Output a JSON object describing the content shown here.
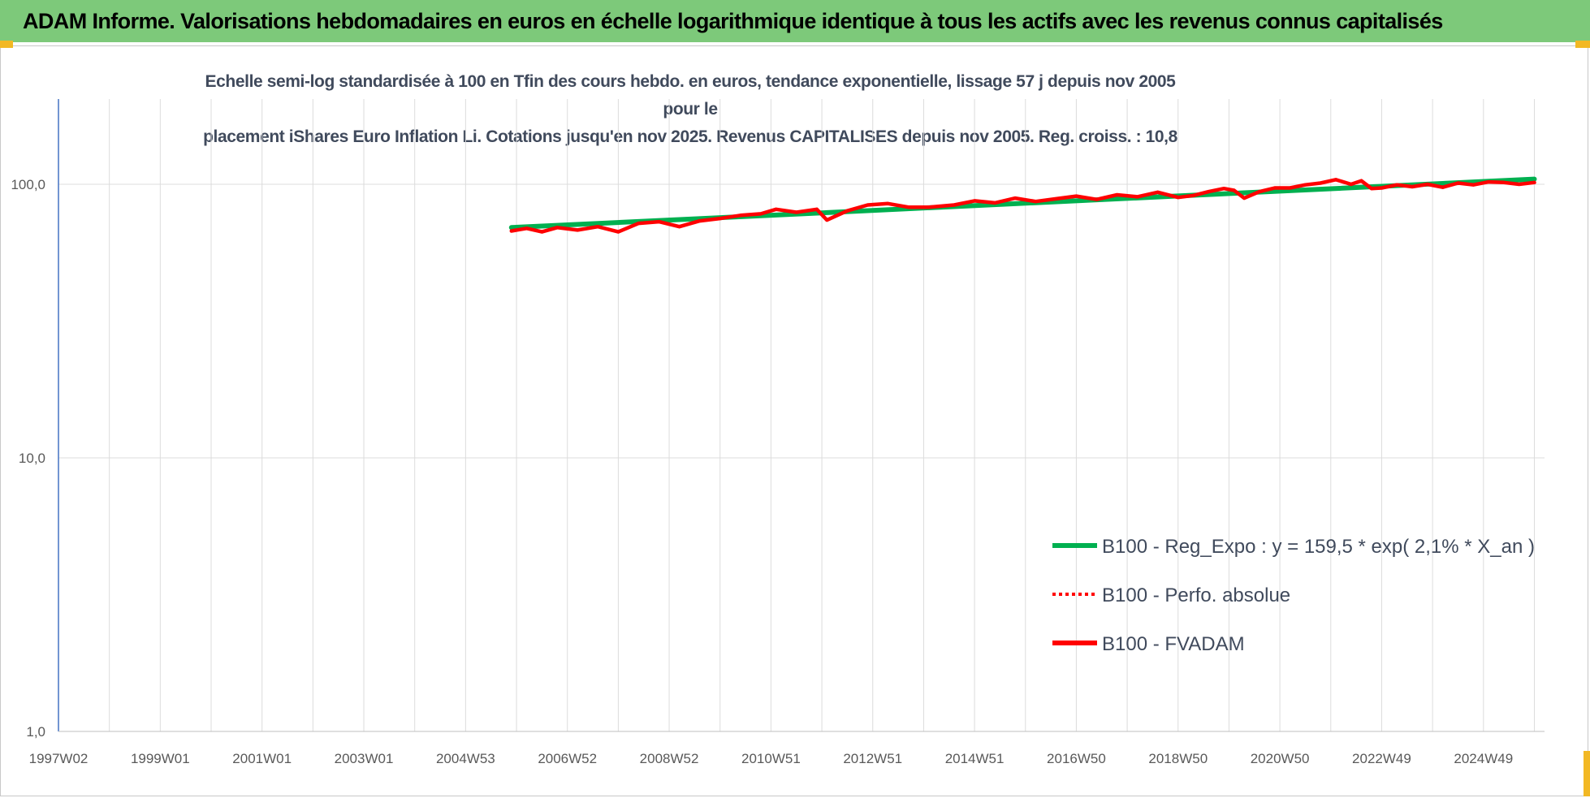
{
  "header": {
    "title": "ADAM Informe. Valorisations hebdomadaires en euros en échelle logarithmique identique à tous les actifs avec les revenus connus capitalisés"
  },
  "chart_data": {
    "type": "line",
    "title_line1": "Echelle semi-log standardisée à 100 en Tfin des cours hebdo. en euros, tendance exponentielle, lissage 57 j depuis nov 2005 pour le",
    "title_line2": "placement iShares Euro Inflation Li. Cotations jusqu'en nov 2025. Revenus CAPITALISES depuis nov 2005. Reg. croiss. : 10,8",
    "y_scale": "log",
    "ylim": [
      1,
      200
    ],
    "y_ticks": [
      {
        "value": 1,
        "label": "1,0"
      },
      {
        "value": 10,
        "label": "10,0"
      },
      {
        "value": 100,
        "label": "100,0"
      }
    ],
    "xlim": [
      1997.0,
      2026.2
    ],
    "x_ticks": [
      {
        "value": 1997.0,
        "label": "1997W02"
      },
      {
        "value": 1999.0,
        "label": "1999W01"
      },
      {
        "value": 2001.0,
        "label": "2001W01"
      },
      {
        "value": 2003.0,
        "label": "2003W01"
      },
      {
        "value": 2005.0,
        "label": "2004W53"
      },
      {
        "value": 2007.0,
        "label": "2006W52"
      },
      {
        "value": 2009.0,
        "label": "2008W52"
      },
      {
        "value": 2011.0,
        "label": "2010W51"
      },
      {
        "value": 2013.0,
        "label": "2012W51"
      },
      {
        "value": 2015.0,
        "label": "2014W51"
      },
      {
        "value": 2017.0,
        "label": "2016W50"
      },
      {
        "value": 2019.0,
        "label": "2018W50"
      },
      {
        "value": 2021.0,
        "label": "2020W50"
      },
      {
        "value": 2023.0,
        "label": "2022W49"
      },
      {
        "value": 2025.0,
        "label": "2024W49"
      }
    ],
    "grid": {
      "vertical": true,
      "horizontal": true
    },
    "legend_position": "bottom-right",
    "series": [
      {
        "name": "B100 - Reg_Expo : y = 159,5 * exp( 2,1% *  X_an )",
        "color": "#00b050",
        "style": "solid",
        "x": [
          2005.9,
          2026.0
        ],
        "y": [
          69.5,
          104.5
        ]
      },
      {
        "name": "B100 - Perfo. absolue",
        "color": "#ff0000",
        "style": "dotted",
        "x": [
          2005.9,
          2006.2,
          2006.5,
          2006.8,
          2007.2,
          2007.6,
          2008.0,
          2008.4,
          2008.8,
          2009.2,
          2009.6,
          2010.0,
          2010.4,
          2010.8,
          2011.1,
          2011.5,
          2011.9,
          2012.1,
          2012.5,
          2012.9,
          2013.3,
          2013.7,
          2014.1,
          2014.6,
          2015.0,
          2015.4,
          2015.8,
          2016.2,
          2016.6,
          2017.0,
          2017.4,
          2017.8,
          2018.2,
          2018.6,
          2019.0,
          2019.3,
          2019.6,
          2019.9,
          2020.1,
          2020.3,
          2020.6,
          2020.9,
          2021.2,
          2021.5,
          2021.8,
          2022.1,
          2022.4,
          2022.6,
          2022.8,
          2023.0,
          2023.3,
          2023.6,
          2023.9,
          2024.2,
          2024.5,
          2024.8,
          2025.1,
          2025.4,
          2025.7,
          2026.0
        ],
        "y": [
          67.5,
          69,
          67,
          69.5,
          68,
          70,
          67,
          72,
          73,
          70,
          73.5,
          75,
          77,
          78,
          81,
          79,
          81,
          74,
          80,
          84,
          85,
          82.5,
          82.5,
          84,
          87,
          85.5,
          89,
          86.5,
          88.5,
          90.5,
          88,
          91.5,
          90,
          93.5,
          89.5,
          91,
          94,
          96.5,
          95,
          89,
          94,
          97,
          97,
          99.5,
          101,
          104,
          100,
          103,
          96.5,
          97,
          99.5,
          98,
          100,
          97.5,
          101,
          99.5,
          102,
          101.5,
          100,
          101.5
        ]
      },
      {
        "name": "B100 - FVADAM",
        "color": "#ff0000",
        "style": "solid",
        "x": [
          2005.9,
          2006.2,
          2006.5,
          2006.8,
          2007.2,
          2007.6,
          2008.0,
          2008.4,
          2008.8,
          2009.2,
          2009.6,
          2010.0,
          2010.4,
          2010.8,
          2011.1,
          2011.5,
          2011.9,
          2012.1,
          2012.5,
          2012.9,
          2013.3,
          2013.7,
          2014.1,
          2014.6,
          2015.0,
          2015.4,
          2015.8,
          2016.2,
          2016.6,
          2017.0,
          2017.4,
          2017.8,
          2018.2,
          2018.6,
          2019.0,
          2019.3,
          2019.6,
          2019.9,
          2020.1,
          2020.3,
          2020.6,
          2020.9,
          2021.2,
          2021.5,
          2021.8,
          2022.1,
          2022.4,
          2022.6,
          2022.8,
          2023.0,
          2023.3,
          2023.6,
          2023.9,
          2024.2,
          2024.5,
          2024.8,
          2025.1,
          2025.4,
          2025.7,
          2026.0
        ],
        "y": [
          67.5,
          69,
          67,
          69.5,
          68,
          70,
          67,
          72,
          73,
          70,
          73.5,
          75,
          77,
          78,
          81,
          79,
          81,
          74,
          80,
          84,
          85,
          82.5,
          82.5,
          84,
          87,
          85.5,
          89,
          86.5,
          88.5,
          90.5,
          88,
          91.5,
          90,
          93.5,
          89.5,
          91,
          94,
          96.5,
          95,
          89,
          94,
          97,
          97,
          99.5,
          101,
          104,
          100,
          103,
          96.5,
          97,
          99.5,
          98,
          100,
          97.5,
          101,
          99.5,
          102,
          101.5,
          100,
          101.5
        ]
      }
    ]
  }
}
